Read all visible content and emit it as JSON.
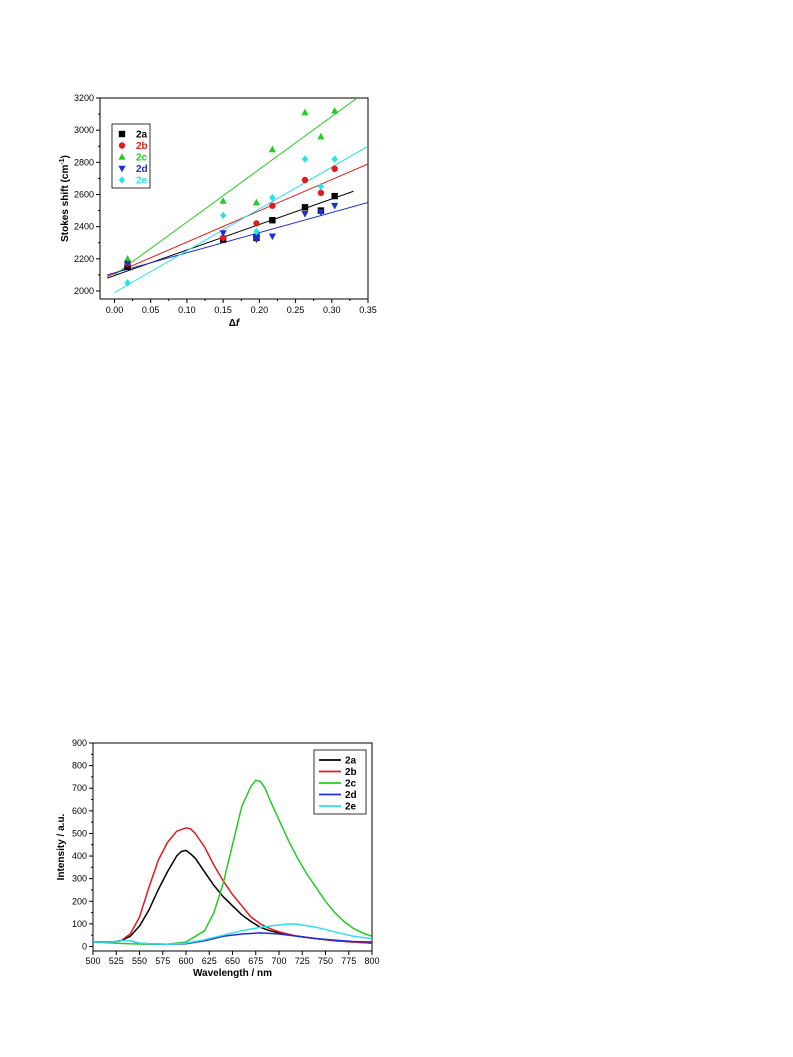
{
  "chart_data": [
    {
      "type": "scatter",
      "xlabel": "Δf",
      "ylabel": "Stokes shift (cm⁻¹)",
      "ylabel_parts": {
        "main": "Stokes shift (cm",
        "sup": "-1",
        "close": ")"
      },
      "xlabel_parts": {
        "main": "Δ",
        "italic": "f"
      },
      "xlim": [
        -0.02,
        0.35
      ],
      "ylim": [
        1950,
        3200
      ],
      "xticks": [
        "0.00",
        "0.05",
        "0.10",
        "0.15",
        "0.20",
        "0.25",
        "0.30",
        "0.35"
      ],
      "yticks": [
        "2000",
        "2200",
        "2400",
        "2600",
        "2800",
        "3000",
        "3200"
      ],
      "legend_position": "top-left",
      "series": [
        {
          "name": "2a",
          "color": "#000000",
          "marker": "square",
          "x": [
            0.018,
            0.15,
            0.196,
            0.218,
            0.263,
            0.285,
            0.304
          ],
          "y": [
            2150,
            2320,
            2330,
            2440,
            2520,
            2500,
            2590
          ],
          "fit": [
            [
              -0.01,
              2080
            ],
            [
              0.33,
              2620
            ]
          ]
        },
        {
          "name": "2b",
          "color": "#e11b1b",
          "marker": "circle",
          "x": [
            0.018,
            0.15,
            0.196,
            0.218,
            0.263,
            0.285,
            0.304
          ],
          "y": [
            2170,
            2330,
            2420,
            2530,
            2690,
            2610,
            2760
          ],
          "fit": [
            [
              -0.01,
              2090
            ],
            [
              0.35,
              2790
            ]
          ]
        },
        {
          "name": "2c",
          "color": "#22cc22",
          "marker": "triangle-up",
          "x": [
            0.018,
            0.15,
            0.196,
            0.218,
            0.263,
            0.285,
            0.304
          ],
          "y": [
            2200,
            2560,
            2550,
            2880,
            3110,
            2960,
            3120
          ],
          "fit": [
            [
              0.0,
              2100
            ],
            [
              0.335,
              3200
            ]
          ]
        },
        {
          "name": "2d",
          "color": "#1f2fd6",
          "marker": "triangle-down",
          "x": [
            0.018,
            0.15,
            0.196,
            0.196,
            0.218,
            0.263,
            0.285,
            0.304
          ],
          "y": [
            2170,
            2360,
            2320,
            2340,
            2340,
            2480,
            2490,
            2530
          ],
          "fit": [
            [
              -0.01,
              2100
            ],
            [
              0.35,
              2550
            ]
          ]
        },
        {
          "name": "2e",
          "color": "#2ee0e8",
          "marker": "diamond",
          "x": [
            0.018,
            0.15,
            0.196,
            0.218,
            0.263,
            0.285,
            0.304
          ],
          "y": [
            2050,
            2470,
            2370,
            2580,
            2820,
            2650,
            2820
          ],
          "fit": [
            [
              0.0,
              1990
            ],
            [
              0.35,
              2900
            ]
          ]
        }
      ]
    },
    {
      "type": "line",
      "xlabel": "Wavelength / nm",
      "ylabel": "Intensity / a.u.",
      "xlim": [
        500,
        800
      ],
      "ylim": [
        -20,
        900
      ],
      "xticks": [
        "500",
        "525",
        "550",
        "575",
        "600",
        "625",
        "650",
        "675",
        "700",
        "725",
        "750",
        "775",
        "800"
      ],
      "yticks": [
        "0",
        "100",
        "200",
        "300",
        "400",
        "500",
        "600",
        "700",
        "800",
        "900"
      ],
      "legend_position": "top-right",
      "series": [
        {
          "name": "2a",
          "color": "#000000",
          "x": [
            500,
            520,
            530,
            540,
            550,
            560,
            570,
            580,
            590,
            595,
            600,
            605,
            610,
            620,
            630,
            640,
            650,
            660,
            670,
            680,
            690,
            700,
            720,
            740,
            760,
            780,
            800
          ],
          "y": [
            20,
            20,
            25,
            45,
            90,
            160,
            250,
            330,
            400,
            420,
            425,
            410,
            390,
            330,
            270,
            220,
            180,
            140,
            110,
            85,
            70,
            60,
            45,
            35,
            25,
            20,
            15
          ]
        },
        {
          "name": "2b",
          "color": "#e11b1b",
          "x": [
            500,
            520,
            530,
            540,
            550,
            560,
            570,
            580,
            590,
            600,
            605,
            610,
            620,
            630,
            640,
            650,
            660,
            670,
            680,
            690,
            700,
            720,
            740,
            760,
            780,
            800
          ],
          "y": [
            20,
            20,
            25,
            55,
            130,
            260,
            380,
            460,
            510,
            525,
            520,
            500,
            440,
            360,
            290,
            230,
            180,
            130,
            100,
            80,
            65,
            45,
            35,
            25,
            20,
            15
          ]
        },
        {
          "name": "2c",
          "color": "#22cc22",
          "x": [
            500,
            540,
            560,
            580,
            600,
            620,
            630,
            640,
            650,
            660,
            670,
            675,
            680,
            685,
            690,
            700,
            710,
            720,
            730,
            740,
            750,
            760,
            770,
            780,
            790,
            800
          ],
          "y": [
            20,
            12,
            10,
            10,
            20,
            70,
            150,
            280,
            450,
            620,
            710,
            735,
            730,
            700,
            650,
            560,
            470,
            390,
            320,
            260,
            200,
            150,
            110,
            80,
            60,
            45
          ]
        },
        {
          "name": "2d",
          "color": "#1f2fd6",
          "x": [
            500,
            520,
            530,
            540,
            550,
            560,
            580,
            600,
            620,
            640,
            660,
            680,
            700,
            720,
            740,
            760,
            780,
            800
          ],
          "y": [
            20,
            20,
            25,
            25,
            15,
            12,
            10,
            12,
            25,
            45,
            55,
            60,
            55,
            45,
            35,
            28,
            22,
            20
          ]
        },
        {
          "name": "2e",
          "color": "#2ee0e8",
          "x": [
            500,
            520,
            530,
            540,
            550,
            560,
            580,
            600,
            620,
            640,
            660,
            680,
            700,
            710,
            720,
            740,
            760,
            780,
            800
          ],
          "y": [
            20,
            20,
            25,
            25,
            15,
            12,
            10,
            15,
            30,
            50,
            70,
            85,
            95,
            100,
            98,
            85,
            65,
            45,
            35
          ]
        }
      ]
    }
  ]
}
